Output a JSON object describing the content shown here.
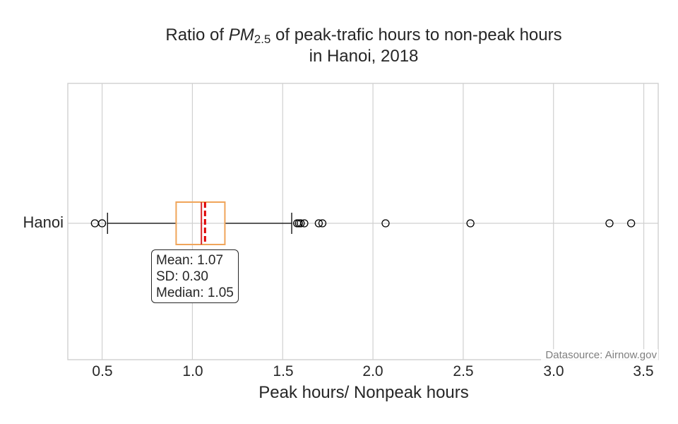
{
  "chart_data": {
    "type": "boxplot",
    "title_prefix": "Ratio of ",
    "title_pm": "PM",
    "title_sub": "2.5",
    "title_suffix": " of peak-trafic hours to non-peak hours",
    "title_line2": "in Hanoi, 2018",
    "xlabel": "Peak hours/ Nonpeak hours",
    "categories": [
      "Hanoi"
    ],
    "xlim": [
      0.31,
      3.58
    ],
    "xticks": [
      "0.5",
      "1.0",
      "1.5",
      "2.0",
      "2.5",
      "3.0",
      "3.5"
    ],
    "grid": true,
    "orientation": "horizontal",
    "series": [
      {
        "category": "Hanoi",
        "whisker_low": 0.53,
        "q1": 0.91,
        "median": 1.05,
        "mean": 1.07,
        "q3": 1.18,
        "whisker_high": 1.55,
        "outliers": [
          0.46,
          0.5,
          1.58,
          1.59,
          1.6,
          1.62,
          1.7,
          1.72,
          2.07,
          2.54,
          3.31,
          3.43
        ]
      }
    ],
    "annotation": {
      "mean_line": "Mean: 1.07",
      "sd_line": "SD: 0.30",
      "median_line": "Median: 1.05"
    },
    "source": "Datasource: Airnow.gov",
    "colors": {
      "box": "#f0a55a",
      "median": "#d62728",
      "mean": "#e00000",
      "grid": "#d0d0d0"
    }
  }
}
